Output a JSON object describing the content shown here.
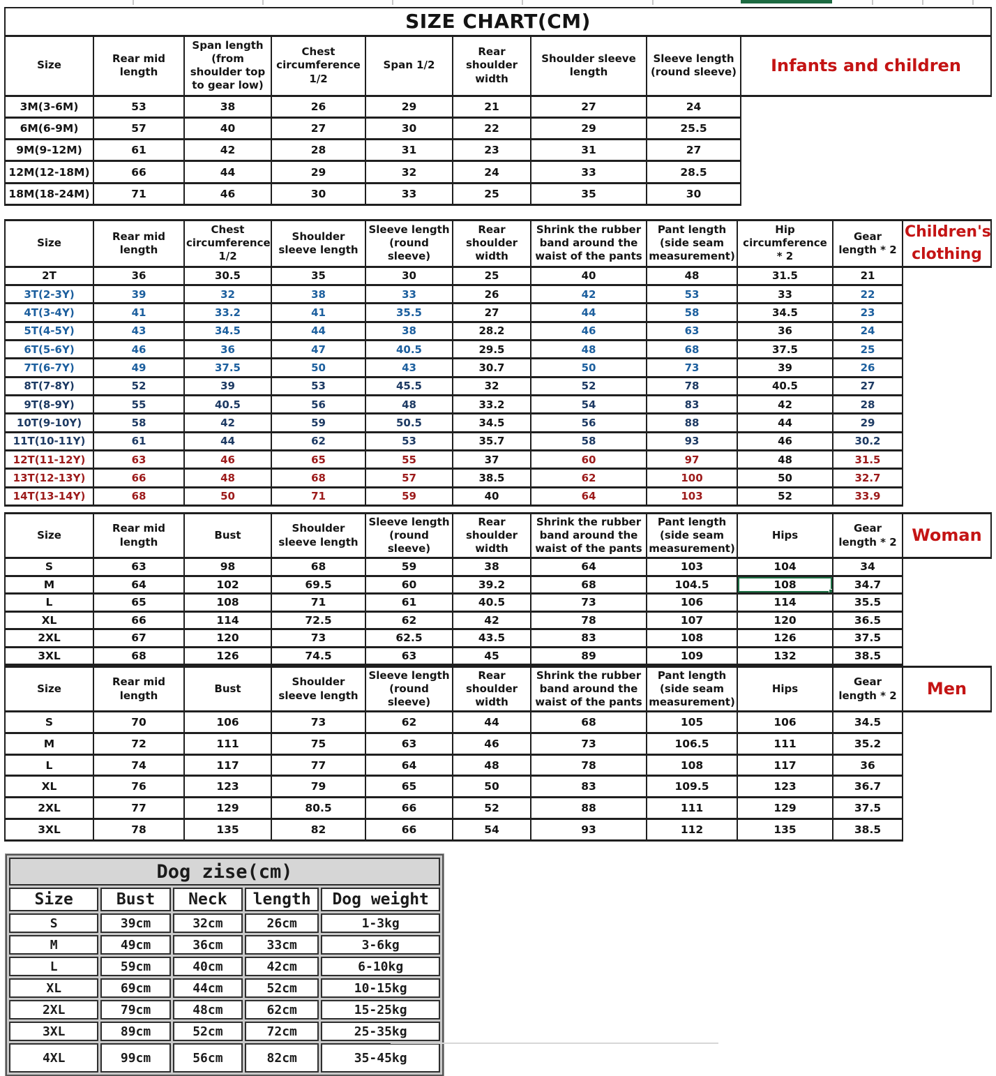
{
  "colors": {
    "label_red": "#c41414",
    "row_blue": "#1c5f9e",
    "row_navy": "#1d3a63",
    "row_red": "#9c1a1a",
    "selection_green": "#1e7145"
  },
  "tables": {
    "infants": {
      "title": "SIZE CHART(CM)",
      "label": "Infants and children",
      "headers": [
        "Size",
        "Rear mid length",
        "Span length (from shoulder top to gear low)",
        "Chest circumference 1/2",
        "Span 1/2",
        "Rear shoulder width",
        "Shoulder sleeve length",
        "Sleeve length (round sleeve)"
      ],
      "rows": [
        {
          "size": "3M(3-6M)",
          "values": [
            "53",
            "38",
            "26",
            "29",
            "21",
            "27",
            "24"
          ]
        },
        {
          "size": "6M(6-9M)",
          "values": [
            "57",
            "40",
            "27",
            "30",
            "22",
            "29",
            "25.5"
          ]
        },
        {
          "size": "9M(9-12M)",
          "values": [
            "61",
            "42",
            "28",
            "31",
            "23",
            "31",
            "27"
          ]
        },
        {
          "size": "12M(12-18M)",
          "values": [
            "66",
            "44",
            "29",
            "32",
            "24",
            "33",
            "28.5"
          ]
        },
        {
          "size": "18M(18-24M)",
          "values": [
            "71",
            "46",
            "30",
            "33",
            "25",
            "35",
            "30"
          ]
        }
      ]
    },
    "children": {
      "label": "Children's clothing",
      "headers": [
        "Size",
        "Rear mid length",
        "Chest circumference 1/2",
        "Shoulder sleeve length",
        "Sleeve length (round sleeve)",
        "Rear shoulder width",
        "Shrink the rubber band around the waist of the pants",
        "Pant length (side seam measurement)",
        "Hip circumference * 2",
        "Gear length * 2"
      ],
      "black_value_indices": [
        4,
        7
      ],
      "rows": [
        {
          "size": "2T",
          "ink": "black",
          "values": [
            "36",
            "30.5",
            "35",
            "30",
            "25",
            "40",
            "48",
            "31.5",
            "21"
          ]
        },
        {
          "size": "3T(2-3Y)",
          "ink": "blue",
          "values": [
            "39",
            "32",
            "38",
            "33",
            "26",
            "42",
            "53",
            "33",
            "22"
          ]
        },
        {
          "size": "4T(3-4Y)",
          "ink": "blue",
          "values": [
            "41",
            "33.2",
            "41",
            "35.5",
            "27",
            "44",
            "58",
            "34.5",
            "23"
          ]
        },
        {
          "size": "5T(4-5Y)",
          "ink": "blue",
          "values": [
            "43",
            "34.5",
            "44",
            "38",
            "28.2",
            "46",
            "63",
            "36",
            "24"
          ]
        },
        {
          "size": "6T(5-6Y)",
          "ink": "blue",
          "values": [
            "46",
            "36",
            "47",
            "40.5",
            "29.5",
            "48",
            "68",
            "37.5",
            "25"
          ]
        },
        {
          "size": "7T(6-7Y)",
          "ink": "blue",
          "values": [
            "49",
            "37.5",
            "50",
            "43",
            "30.7",
            "50",
            "73",
            "39",
            "26"
          ]
        },
        {
          "size": "8T(7-8Y)",
          "ink": "navy",
          "values": [
            "52",
            "39",
            "53",
            "45.5",
            "32",
            "52",
            "78",
            "40.5",
            "27"
          ]
        },
        {
          "size": "9T(8-9Y)",
          "ink": "navy",
          "values": [
            "55",
            "40.5",
            "56",
            "48",
            "33.2",
            "54",
            "83",
            "42",
            "28"
          ]
        },
        {
          "size": "10T(9-10Y)",
          "ink": "navy",
          "values": [
            "58",
            "42",
            "59",
            "50.5",
            "34.5",
            "56",
            "88",
            "44",
            "29"
          ]
        },
        {
          "size": "11T(10-11Y)",
          "ink": "navy",
          "values": [
            "61",
            "44",
            "62",
            "53",
            "35.7",
            "58",
            "93",
            "46",
            "30.2"
          ]
        },
        {
          "size": "12T(11-12Y)",
          "ink": "red",
          "values": [
            "63",
            "46",
            "65",
            "55",
            "37",
            "60",
            "97",
            "48",
            "31.5"
          ]
        },
        {
          "size": "13T(12-13Y)",
          "ink": "red",
          "values": [
            "66",
            "48",
            "68",
            "57",
            "38.5",
            "62",
            "100",
            "50",
            "32.7"
          ]
        },
        {
          "size": "14T(13-14Y)",
          "ink": "red",
          "values": [
            "68",
            "50",
            "71",
            "59",
            "40",
            "64",
            "103",
            "52",
            "33.9"
          ]
        }
      ]
    },
    "woman": {
      "label": "Woman",
      "headers": [
        "Size",
        "Rear mid length",
        "Bust",
        "Shoulder sleeve length",
        "Sleeve length (round sleeve)",
        "Rear shoulder width",
        "Shrink the rubber band around the waist of the pants",
        "Pant length (side seam measurement)",
        "Hips",
        "Gear length * 2"
      ],
      "selected_cell": {
        "row": "M",
        "value_index": 7
      },
      "rows": [
        {
          "size": "S",
          "values": [
            "63",
            "98",
            "68",
            "59",
            "38",
            "64",
            "103",
            "104",
            "34"
          ]
        },
        {
          "size": "M",
          "values": [
            "64",
            "102",
            "69.5",
            "60",
            "39.2",
            "68",
            "104.5",
            "108",
            "34.7"
          ]
        },
        {
          "size": "L",
          "values": [
            "65",
            "108",
            "71",
            "61",
            "40.5",
            "73",
            "106",
            "114",
            "35.5"
          ]
        },
        {
          "size": "XL",
          "values": [
            "66",
            "114",
            "72.5",
            "62",
            "42",
            "78",
            "107",
            "120",
            "36.5"
          ]
        },
        {
          "size": "2XL",
          "values": [
            "67",
            "120",
            "73",
            "62.5",
            "43.5",
            "83",
            "108",
            "126",
            "37.5"
          ]
        },
        {
          "size": "3XL",
          "values": [
            "68",
            "126",
            "74.5",
            "63",
            "45",
            "89",
            "109",
            "132",
            "38.5"
          ]
        }
      ]
    },
    "men": {
      "label": "Men",
      "headers": [
        "Size",
        "Rear mid length",
        "Bust",
        "Shoulder sleeve length",
        "Sleeve length (round sleeve)",
        "Rear shoulder width",
        "Shrink the rubber band around the waist of the pants",
        "Pant length (side seam measurement)",
        "Hips",
        "Gear length * 2"
      ],
      "rows": [
        {
          "size": "S",
          "values": [
            "70",
            "106",
            "73",
            "62",
            "44",
            "68",
            "105",
            "106",
            "34.5"
          ]
        },
        {
          "size": "M",
          "values": [
            "72",
            "111",
            "75",
            "63",
            "46",
            "73",
            "106.5",
            "111",
            "35.2"
          ]
        },
        {
          "size": "L",
          "values": [
            "74",
            "117",
            "77",
            "64",
            "48",
            "78",
            "108",
            "117",
            "36"
          ]
        },
        {
          "size": "XL",
          "values": [
            "76",
            "123",
            "79",
            "65",
            "50",
            "83",
            "109.5",
            "123",
            "36.7"
          ]
        },
        {
          "size": "2XL",
          "values": [
            "77",
            "129",
            "80.5",
            "66",
            "52",
            "88",
            "111",
            "129",
            "37.5"
          ]
        },
        {
          "size": "3XL",
          "values": [
            "78",
            "135",
            "82",
            "66",
            "54",
            "93",
            "112",
            "135",
            "38.5"
          ]
        }
      ]
    },
    "dog": {
      "title": "Dog zise(cm)",
      "headers": [
        "Size",
        "Bust",
        "Neck",
        "length",
        "Dog weight"
      ],
      "rows": [
        {
          "size": "S",
          "values": [
            "39cm",
            "32cm",
            "26cm",
            "1-3kg"
          ]
        },
        {
          "size": "M",
          "values": [
            "49cm",
            "36cm",
            "33cm",
            "3-6kg"
          ]
        },
        {
          "size": "L",
          "values": [
            "59cm",
            "40cm",
            "42cm",
            "6-10kg"
          ]
        },
        {
          "size": "XL",
          "values": [
            "69cm",
            "44cm",
            "52cm",
            "10-15kg"
          ]
        },
        {
          "size": "2XL",
          "values": [
            "79cm",
            "48cm",
            "62cm",
            "15-25kg"
          ]
        },
        {
          "size": "3XL",
          "values": [
            "89cm",
            "52cm",
            "72cm",
            "25-35kg"
          ]
        },
        {
          "size": "4XL",
          "values": [
            "99cm",
            "56cm",
            "82cm",
            "35-45kg"
          ]
        }
      ]
    }
  }
}
